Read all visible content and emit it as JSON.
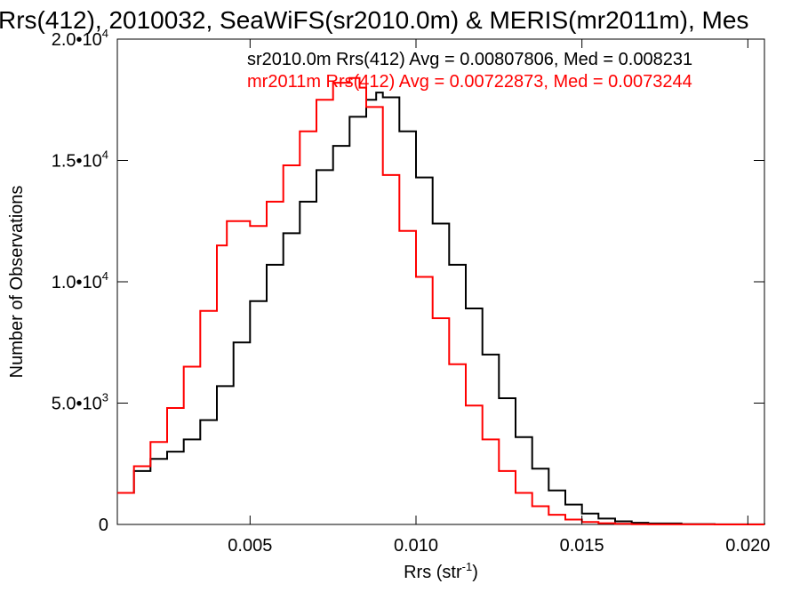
{
  "chart_data": {
    "type": "line",
    "title": "Rrs(412), 2010032, SeaWiFS(sr2010.0m) & MERIS(mr2011m), Mes",
    "xlabel": "Rrs (str",
    "xlabel_sup": "-1",
    "xlabel_suffix": ")",
    "ylabel": "Number of Observations",
    "xlim": [
      0.001,
      0.0205
    ],
    "ylim": [
      0,
      20000
    ],
    "x_ticks": [
      {
        "value": 0.005,
        "label": "0.005"
      },
      {
        "value": 0.01,
        "label": "0.010"
      },
      {
        "value": 0.015,
        "label": "0.015"
      },
      {
        "value": 0.02,
        "label": "0.020"
      }
    ],
    "y_ticks": [
      {
        "value": 0,
        "mant": "0",
        "exp": ""
      },
      {
        "value": 5000,
        "mant": "5.0•10",
        "exp": "3"
      },
      {
        "value": 10000,
        "mant": "1.0•10",
        "exp": "4"
      },
      {
        "value": 15000,
        "mant": "1.5•10",
        "exp": "4"
      },
      {
        "value": 20000,
        "mant": "2.0•10",
        "exp": "4"
      }
    ],
    "grid": false,
    "series": [
      {
        "name": "sr2010.0m",
        "label": "sr2010.0m Rrs(412) Avg = 0.00807806, Med = 0.008231",
        "color": "#000000",
        "x": [
          0.001,
          0.0015,
          0.002,
          0.0025,
          0.003,
          0.0035,
          0.004,
          0.0045,
          0.005,
          0.0055,
          0.006,
          0.0065,
          0.007,
          0.0075,
          0.008,
          0.0085,
          0.0088,
          0.009,
          0.0095,
          0.01,
          0.0105,
          0.011,
          0.0115,
          0.012,
          0.0125,
          0.013,
          0.0135,
          0.014,
          0.0145,
          0.015,
          0.0155,
          0.016,
          0.0165,
          0.017,
          0.018,
          0.019,
          0.02,
          0.0205
        ],
        "values": [
          1300,
          2200,
          2700,
          3000,
          3500,
          4300,
          5700,
          7500,
          9200,
          10700,
          12000,
          13300,
          14600,
          15600,
          16800,
          17500,
          17800,
          17600,
          16200,
          14300,
          12400,
          10700,
          8900,
          7000,
          5200,
          3600,
          2300,
          1400,
          820,
          450,
          240,
          130,
          70,
          40,
          15,
          5,
          2,
          1
        ]
      },
      {
        "name": "mr2011m",
        "label": "mr2011m Rrs(412) Avg = 0.00722873, Med = 0.0073244",
        "color": "#ff0000",
        "x": [
          0.001,
          0.0015,
          0.002,
          0.0025,
          0.003,
          0.0035,
          0.004,
          0.0043,
          0.0045,
          0.005,
          0.0055,
          0.006,
          0.0065,
          0.007,
          0.0075,
          0.008,
          0.0083,
          0.0085,
          0.009,
          0.0095,
          0.01,
          0.0105,
          0.011,
          0.0115,
          0.012,
          0.0125,
          0.013,
          0.0135,
          0.014,
          0.0145,
          0.015,
          0.0155,
          0.016,
          0.0165,
          0.017,
          0.018,
          0.019,
          0.0205
        ],
        "values": [
          1300,
          2400,
          3400,
          4800,
          6500,
          8800,
          11500,
          12500,
          12500,
          12300,
          13300,
          14800,
          16200,
          17500,
          18200,
          18400,
          18000,
          17200,
          14400,
          12100,
          10200,
          8500,
          6600,
          4900,
          3500,
          2200,
          1300,
          750,
          400,
          200,
          100,
          50,
          25,
          12,
          5,
          2,
          1,
          0
        ]
      }
    ]
  }
}
